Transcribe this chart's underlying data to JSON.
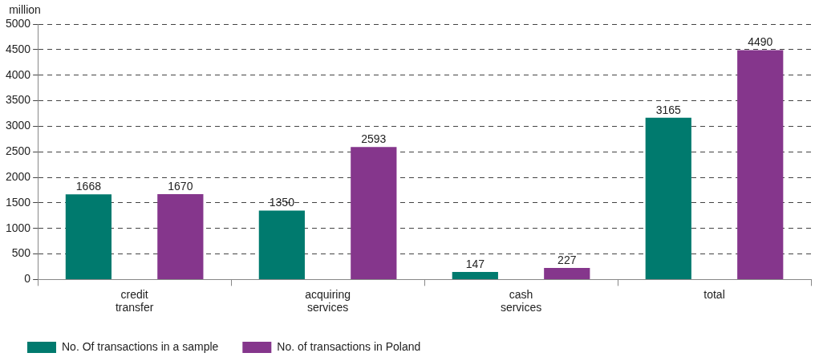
{
  "chart_data": {
    "type": "bar",
    "ylabel": "million",
    "categories": [
      "credit transfer",
      "acquiring services",
      "cash services",
      "total"
    ],
    "series": [
      {
        "name": "No. Of transactions in a sample",
        "color": "#007a6e",
        "values": [
          1668,
          1350,
          147,
          3165
        ]
      },
      {
        "name": "No. of transactions in Poland",
        "color": "#85368c",
        "values": [
          1670,
          2593,
          227,
          4490
        ]
      }
    ],
    "ylim": [
      0,
      5000
    ],
    "yticks": [
      0,
      500,
      1000,
      1500,
      2000,
      2500,
      3000,
      3500,
      4000,
      4500,
      5000
    ],
    "grid": "y",
    "legend": "bottom left",
    "data_labels": true
  }
}
